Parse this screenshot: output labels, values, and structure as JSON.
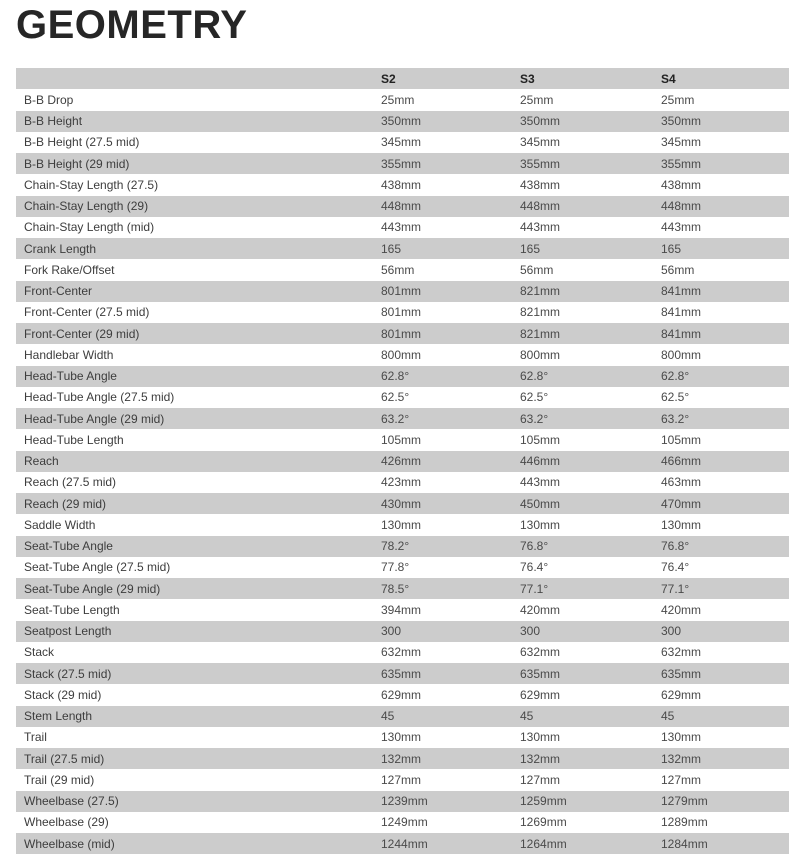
{
  "title": "GEOMETRY",
  "colors": {
    "header_bg": "#cccccc",
    "stripe_bg": "#cccccc",
    "row_bg": "#ffffff",
    "label_text": "#3d3d3d",
    "value_text": "#4a4a4a",
    "header_text": "#222222",
    "title_text": "#262626"
  },
  "chart_data": {
    "type": "table",
    "title": "GEOMETRY",
    "columns": [
      "",
      "S2",
      "S3",
      "S4"
    ],
    "rows": [
      {
        "label": "B-B Drop",
        "values": [
          "25mm",
          "25mm",
          "25mm"
        ]
      },
      {
        "label": "B-B Height",
        "values": [
          "350mm",
          "350mm",
          "350mm"
        ]
      },
      {
        "label": "B-B Height (27.5 mid)",
        "values": [
          "345mm",
          "345mm",
          "345mm"
        ]
      },
      {
        "label": "B-B Height (29 mid)",
        "values": [
          "355mm",
          "355mm",
          "355mm"
        ]
      },
      {
        "label": "Chain-Stay Length (27.5)",
        "values": [
          "438mm",
          "438mm",
          "438mm"
        ]
      },
      {
        "label": "Chain-Stay Length (29)",
        "values": [
          "448mm",
          "448mm",
          "448mm"
        ]
      },
      {
        "label": "Chain-Stay Length (mid)",
        "values": [
          "443mm",
          "443mm",
          "443mm"
        ]
      },
      {
        "label": "Crank Length",
        "values": [
          "165",
          "165",
          "165"
        ]
      },
      {
        "label": "Fork Rake/Offset",
        "values": [
          "56mm",
          "56mm",
          "56mm"
        ]
      },
      {
        "label": "Front-Center",
        "values": [
          "801mm",
          "821mm",
          "841mm"
        ]
      },
      {
        "label": "Front-Center (27.5 mid)",
        "values": [
          "801mm",
          "821mm",
          "841mm"
        ]
      },
      {
        "label": "Front-Center (29 mid)",
        "values": [
          "801mm",
          "821mm",
          "841mm"
        ]
      },
      {
        "label": "Handlebar Width",
        "values": [
          "800mm",
          "800mm",
          "800mm"
        ]
      },
      {
        "label": "Head-Tube Angle",
        "values": [
          "62.8°",
          "62.8°",
          "62.8°"
        ]
      },
      {
        "label": "Head-Tube Angle (27.5 mid)",
        "values": [
          "62.5°",
          "62.5°",
          "62.5°"
        ]
      },
      {
        "label": "Head-Tube Angle (29 mid)",
        "values": [
          "63.2°",
          "63.2°",
          "63.2°"
        ]
      },
      {
        "label": "Head-Tube Length",
        "values": [
          "105mm",
          "105mm",
          "105mm"
        ]
      },
      {
        "label": "Reach",
        "values": [
          "426mm",
          "446mm",
          "466mm"
        ]
      },
      {
        "label": "Reach (27.5 mid)",
        "values": [
          "423mm",
          "443mm",
          "463mm"
        ]
      },
      {
        "label": "Reach (29 mid)",
        "values": [
          "430mm",
          "450mm",
          "470mm"
        ]
      },
      {
        "label": "Saddle Width",
        "values": [
          "130mm",
          "130mm",
          "130mm"
        ]
      },
      {
        "label": "Seat-Tube Angle",
        "values": [
          "78.2°",
          "76.8°",
          "76.8°"
        ]
      },
      {
        "label": "Seat-Tube Angle (27.5 mid)",
        "values": [
          "77.8°",
          "76.4°",
          "76.4°"
        ]
      },
      {
        "label": "Seat-Tube Angle (29 mid)",
        "values": [
          "78.5°",
          "77.1°",
          "77.1°"
        ]
      },
      {
        "label": "Seat-Tube Length",
        "values": [
          "394mm",
          "420mm",
          "420mm"
        ]
      },
      {
        "label": "Seatpost Length",
        "values": [
          "300",
          "300",
          "300"
        ]
      },
      {
        "label": "Stack",
        "values": [
          "632mm",
          "632mm",
          "632mm"
        ]
      },
      {
        "label": "Stack (27.5 mid)",
        "values": [
          "635mm",
          "635mm",
          "635mm"
        ]
      },
      {
        "label": "Stack (29 mid)",
        "values": [
          "629mm",
          "629mm",
          "629mm"
        ]
      },
      {
        "label": "Stem Length",
        "values": [
          "45",
          "45",
          "45"
        ]
      },
      {
        "label": "Trail",
        "values": [
          "130mm",
          "130mm",
          "130mm"
        ]
      },
      {
        "label": "Trail (27.5 mid)",
        "values": [
          "132mm",
          "132mm",
          "132mm"
        ]
      },
      {
        "label": "Trail (29 mid)",
        "values": [
          "127mm",
          "127mm",
          "127mm"
        ]
      },
      {
        "label": "Wheelbase (27.5)",
        "values": [
          "1239mm",
          "1259mm",
          "1279mm"
        ]
      },
      {
        "label": "Wheelbase (29)",
        "values": [
          "1249mm",
          "1269mm",
          "1289mm"
        ]
      },
      {
        "label": "Wheelbase (mid)",
        "values": [
          "1244mm",
          "1264mm",
          "1284mm"
        ]
      }
    ]
  }
}
